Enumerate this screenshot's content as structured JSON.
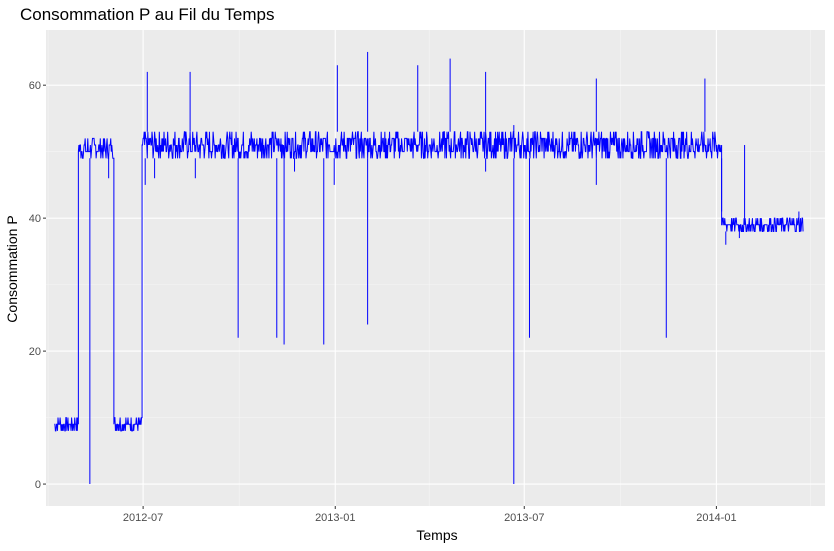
{
  "chart_data": {
    "type": "line",
    "title": "Consommation P au Fil du Temps",
    "xlabel": "Temps",
    "ylabel": "Consommation P",
    "xlim": [
      "2012-03-30",
      "2014-04-15"
    ],
    "ylim": [
      -3.3,
      68.3
    ],
    "x_ticks": [
      {
        "value": "2012-07-01",
        "label": "2012-07"
      },
      {
        "value": "2013-01-01",
        "label": "2013-01"
      },
      {
        "value": "2013-07-01",
        "label": "2013-07"
      },
      {
        "value": "2014-01-01",
        "label": "2014-01"
      }
    ],
    "y_ticks": [
      0,
      20,
      40,
      60
    ],
    "grid": true,
    "background": "#ebebeb",
    "line_color": "#0000ff",
    "series": [
      {
        "band_segments": [
          {
            "start": "2012-04-07",
            "end": "2012-04-30",
            "low": 8,
            "high": 10
          },
          {
            "start": "2012-04-30",
            "end": "2012-06-03",
            "low": 49,
            "high": 52
          },
          {
            "start": "2012-06-03",
            "end": "2012-06-30",
            "low": 8,
            "high": 10
          },
          {
            "start": "2012-06-30",
            "end": "2014-01-06",
            "low": 49,
            "high": 53
          },
          {
            "start": "2014-01-06",
            "end": "2014-03-25",
            "low": 38,
            "high": 40
          }
        ],
        "spikes": [
          {
            "date": "2012-05-11",
            "value": 0
          },
          {
            "date": "2012-05-29",
            "value": 46
          },
          {
            "date": "2012-07-03",
            "value": 45
          },
          {
            "date": "2012-07-05",
            "value": 62
          },
          {
            "date": "2012-07-12",
            "value": 46
          },
          {
            "date": "2012-08-15",
            "value": 62
          },
          {
            "date": "2012-08-20",
            "value": 46
          },
          {
            "date": "2012-09-30",
            "value": 22
          },
          {
            "date": "2012-11-06",
            "value": 22
          },
          {
            "date": "2012-11-13",
            "value": 21
          },
          {
            "date": "2012-11-23",
            "value": 47
          },
          {
            "date": "2012-12-21",
            "value": 21
          },
          {
            "date": "2012-12-31",
            "value": 45
          },
          {
            "date": "2013-01-03",
            "value": 63
          },
          {
            "date": "2013-02-01",
            "value": 24
          },
          {
            "date": "2013-02-01",
            "value": 65
          },
          {
            "date": "2013-03-21",
            "value": 63
          },
          {
            "date": "2013-04-21",
            "value": 64
          },
          {
            "date": "2013-05-25",
            "value": 62
          },
          {
            "date": "2013-05-25",
            "value": 47
          },
          {
            "date": "2013-06-21",
            "value": 0
          },
          {
            "date": "2013-06-21",
            "value": 54
          },
          {
            "date": "2013-07-06",
            "value": 22
          },
          {
            "date": "2013-09-08",
            "value": 61
          },
          {
            "date": "2013-09-08",
            "value": 45
          },
          {
            "date": "2013-11-14",
            "value": 22
          },
          {
            "date": "2013-12-21",
            "value": 61
          },
          {
            "date": "2014-01-06",
            "value": 41
          },
          {
            "date": "2014-01-10",
            "value": 36
          },
          {
            "date": "2014-01-23",
            "value": 37
          },
          {
            "date": "2014-01-28",
            "value": 51
          },
          {
            "date": "2014-03-21",
            "value": 41
          }
        ]
      }
    ]
  }
}
